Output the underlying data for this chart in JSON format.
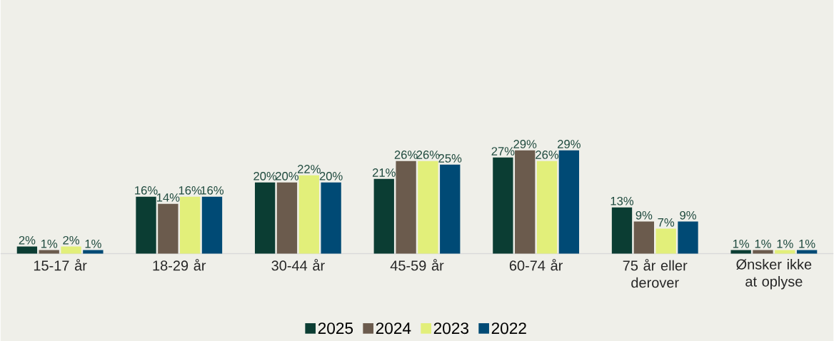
{
  "chart_data": {
    "type": "bar",
    "categories": [
      "15-17 år",
      "18-29 år",
      "30-44 år",
      "45-59 år",
      "60-74 år",
      "75 år eller derover",
      "Ønsker ikke at oplyse"
    ],
    "series": [
      {
        "name": "2025",
        "color": "#0b3d33",
        "values": [
          2,
          16,
          20,
          21,
          27,
          13,
          1
        ],
        "value_labels": [
          "2%",
          "16%",
          "20%",
          "21%",
          "27%",
          "13%",
          "1%"
        ]
      },
      {
        "name": "2024",
        "color": "#6b5b4d",
        "values": [
          1,
          14,
          20,
          26,
          29,
          9,
          1
        ],
        "value_labels": [
          "1%",
          "14%",
          "20%",
          "26%",
          "29%",
          "9%",
          "1%"
        ]
      },
      {
        "name": "2023",
        "color": "#e2ef7a",
        "values": [
          2,
          16,
          22,
          26,
          26,
          7,
          1
        ],
        "value_labels": [
          "2%",
          "16%",
          "22%",
          "26%",
          "26%",
          "7%",
          "1%"
        ]
      },
      {
        "name": "2022",
        "color": "#004a75",
        "values": [
          1,
          16,
          20,
          25,
          29,
          9,
          1
        ],
        "value_labels": [
          "1%",
          "16%",
          "20%",
          "25%",
          "29%",
          "9%",
          "1%"
        ]
      }
    ],
    "legend": "bottom"
  }
}
